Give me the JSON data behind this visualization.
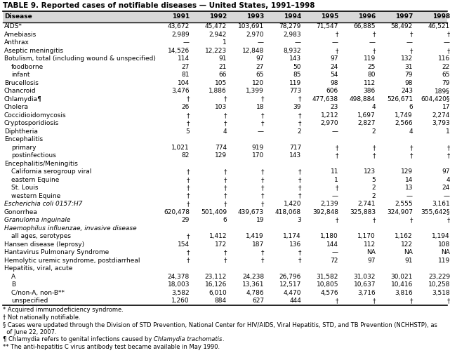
{
  "title": "TABLE 9. Reported cases of notifiable diseases — United States, 1991–1998",
  "columns": [
    "Disease",
    "1991",
    "1992",
    "1993",
    "1994",
    "1995",
    "1996",
    "1997",
    "1998"
  ],
  "rows": [
    [
      "AIDS*",
      "43,672",
      "45,472",
      "103,691",
      "78,279",
      "71,547",
      "66,885",
      "58,492",
      "46,521"
    ],
    [
      "Amebiasis",
      "2,989",
      "2,942",
      "2,970",
      "2,983",
      "†",
      "†",
      "†",
      "†"
    ],
    [
      "Anthrax",
      "—",
      "1",
      "—",
      "—",
      "—",
      "—",
      "—",
      "—"
    ],
    [
      "Aseptic meningitis",
      "14,526",
      "12,223",
      "12,848",
      "8,932",
      "†",
      "†",
      "†",
      "†"
    ],
    [
      "Botulism, total (including wound & unspecified)",
      "114",
      "91",
      "97",
      "143",
      "97",
      "119",
      "132",
      "116"
    ],
    [
      "  foodborne",
      "27",
      "21",
      "27",
      "50",
      "24",
      "25",
      "31",
      "22"
    ],
    [
      "  infant",
      "81",
      "66",
      "65",
      "85",
      "54",
      "80",
      "79",
      "65"
    ],
    [
      "Brucellosis",
      "104",
      "105",
      "120",
      "119",
      "98",
      "112",
      "98",
      "79"
    ],
    [
      "Chancroid",
      "3,476",
      "1,886",
      "1,399",
      "773",
      "606",
      "386",
      "243",
      "189§"
    ],
    [
      "Chlamydia¶",
      "†",
      "†",
      "†",
      "†",
      "477,638",
      "498,884",
      "526,671",
      "604,420§"
    ],
    [
      "Cholera",
      "26",
      "103",
      "18",
      "39",
      "23",
      "4",
      "6",
      "17"
    ],
    [
      "Coccidioidomycosis",
      "†",
      "†",
      "†",
      "†",
      "1,212",
      "1,697",
      "1,749",
      "2,274"
    ],
    [
      "Cryptosporidiosis",
      "†",
      "†",
      "†",
      "†",
      "2,970",
      "2,827",
      "2,566",
      "3,793"
    ],
    [
      "Diphtheria",
      "5",
      "4",
      "—",
      "2",
      "—",
      "2",
      "4",
      "1"
    ],
    [
      "Encephalitis",
      "",
      "",
      "",
      "",
      "",
      "",
      "",
      ""
    ],
    [
      "  primary",
      "1,021",
      "774",
      "919",
      "717",
      "†",
      "†",
      "†",
      "†"
    ],
    [
      "  postinfectious",
      "82",
      "129",
      "170",
      "143",
      "†",
      "†",
      "†",
      "†"
    ],
    [
      "Encephalitis/Meningitis",
      "",
      "",
      "",
      "",
      "",
      "",
      "",
      ""
    ],
    [
      "  California serogroup viral",
      "†",
      "†",
      "†",
      "†",
      "11",
      "123",
      "129",
      "97"
    ],
    [
      "  eastern Equine",
      "†",
      "†",
      "†",
      "†",
      "1",
      "5",
      "14",
      "4"
    ],
    [
      "  St. Louis",
      "†",
      "†",
      "†",
      "†",
      "†",
      "2",
      "13",
      "24"
    ],
    [
      "  western Equine",
      "†",
      "†",
      "†",
      "†",
      "—",
      "2",
      "—",
      "—"
    ],
    [
      "Escherichia coli 0157:H7",
      "†",
      "†",
      "†",
      "1,420",
      "2,139",
      "2,741",
      "2,555",
      "3,161"
    ],
    [
      "Gonorrhea",
      "620,478",
      "501,409",
      "439,673",
      "418,068",
      "392,848",
      "325,883",
      "324,907",
      "355,642§"
    ],
    [
      "Granuloma inguinale",
      "29",
      "6",
      "19",
      "3",
      "†",
      "†",
      "†",
      "†"
    ],
    [
      "Haemophilus influenzae, invasive disease",
      "",
      "",
      "",
      "",
      "",
      "",
      "",
      ""
    ],
    [
      "  all ages, serotypes",
      "†",
      "1,412",
      "1,419",
      "1,174",
      "1,180",
      "1,170",
      "1,162",
      "1,194"
    ],
    [
      "Hansen disease (leprosy)",
      "154",
      "172",
      "187",
      "136",
      "144",
      "112",
      "122",
      "108"
    ],
    [
      "Hantavirus Pulmonary Syndrome",
      "†",
      "†",
      "†",
      "†",
      "—",
      "NA",
      "NA",
      "NA"
    ],
    [
      "Hemolytic uremic syndrome, postdiarrheal",
      "†",
      "†",
      "†",
      "†",
      "72",
      "97",
      "91",
      "119"
    ],
    [
      "Hepatitis, viral, acute",
      "",
      "",
      "",
      "",
      "",
      "",
      "",
      ""
    ],
    [
      "  A",
      "24,378",
      "23,112",
      "24,238",
      "26,796",
      "31,582",
      "31,032",
      "30,021",
      "23,229"
    ],
    [
      "  B",
      "18,003",
      "16,126",
      "13,361",
      "12,517",
      "10,805",
      "10,637",
      "10,416",
      "10,258"
    ],
    [
      "  C/non-A, non-B**",
      "3,582",
      "6,010",
      "4,786",
      "4,470",
      "4,576",
      "3,716",
      "3,816",
      "3,518"
    ],
    [
      "  unspecified",
      "1,260",
      "884",
      "627",
      "444",
      "†",
      "†",
      "†",
      "†"
    ]
  ],
  "footnotes": [
    [
      "* Acquired immunodeficiency syndrome.",
      false
    ],
    [
      "† Not nationally notifiable.",
      false
    ],
    [
      "§ Cases were updated through the Division of STD Prevention, National Center for HIV/AIDS, Viral Hepatitis, STD, and TB Prevention (NCHHSTP), as",
      false
    ],
    [
      "  of June 22, 2007.",
      false
    ],
    [
      "¶ Chlamydia refers to genital infections caused by ",
      false,
      "Chlamydia trachomatis",
      true,
      ".",
      false
    ],
    [
      "** The anti-hepatitis C virus antibody test became available in May 1990.",
      false
    ]
  ],
  "italic_diseases": [
    "Escherichia coli 0157:H7",
    "Granuloma inguinale",
    "Haemophilus influenzae, invasive disease"
  ],
  "bg_color": "#ffffff",
  "font_size": 6.5,
  "title_font_size": 7.5,
  "fn_font_size": 6.0
}
